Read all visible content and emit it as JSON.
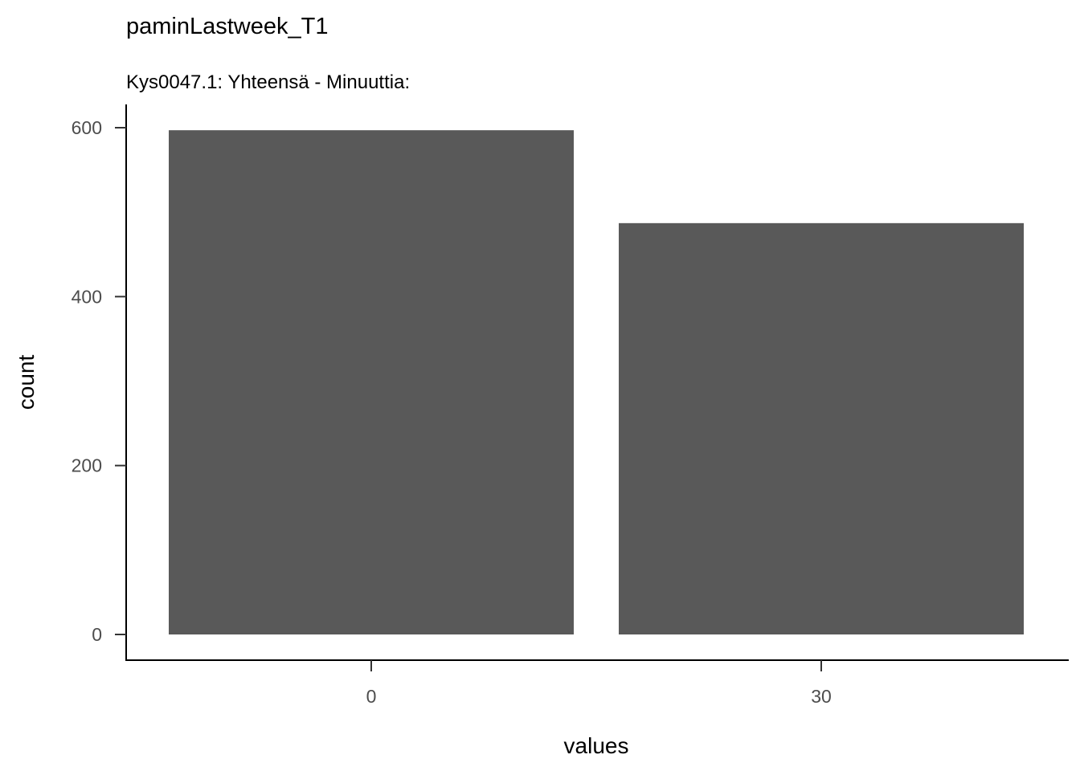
{
  "chart_data": {
    "type": "bar",
    "title": "paminLastweek_T1",
    "subtitle": "Kys0047.1: Yhteensä - Minuuttia:",
    "xlabel": "values",
    "ylabel": "count",
    "categories": [
      "0",
      "30"
    ],
    "values": [
      597,
      487
    ],
    "ylim": [
      0,
      620
    ],
    "yticks": [
      0,
      200,
      400,
      600
    ],
    "grid": false,
    "legend": "none",
    "bar_color": "#595959",
    "axis_color": "#000000",
    "tick_label_color": "#4d4d4d"
  }
}
